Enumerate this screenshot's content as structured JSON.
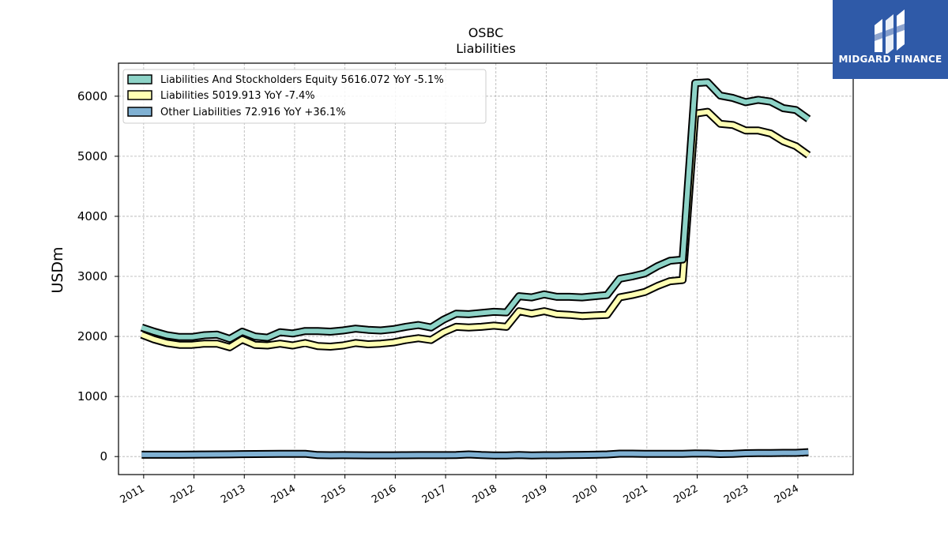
{
  "brand": {
    "name": "MIDGARD FINANCE",
    "color": "#2f5aa8"
  },
  "chart_data": {
    "type": "line",
    "title": "OSBC",
    "subtitle": "Liabilities",
    "xlabel": "",
    "ylabel": "USDm",
    "ylim": [
      -300,
      6550
    ],
    "xlim": [
      2010.5,
      2025.1
    ],
    "yticks": [
      0,
      1000,
      2000,
      3000,
      4000,
      5000,
      6000
    ],
    "xticks": [
      "2011",
      "2012",
      "2013",
      "2014",
      "2015",
      "2016",
      "2017",
      "2018",
      "2019",
      "2020",
      "2021",
      "2022",
      "2023",
      "2024"
    ],
    "grid": true,
    "legend_position": "top-left",
    "x": [
      2010.96,
      2011.21,
      2011.46,
      2011.71,
      2011.96,
      2012.21,
      2012.46,
      2012.71,
      2012.96,
      2013.21,
      2013.46,
      2013.71,
      2013.96,
      2014.21,
      2014.46,
      2014.71,
      2014.96,
      2015.21,
      2015.46,
      2015.71,
      2015.96,
      2016.21,
      2016.46,
      2016.71,
      2016.96,
      2017.21,
      2017.46,
      2017.71,
      2017.96,
      2018.21,
      2018.46,
      2018.71,
      2018.96,
      2019.21,
      2019.46,
      2019.71,
      2019.96,
      2020.21,
      2020.46,
      2020.71,
      2020.96,
      2021.21,
      2021.46,
      2021.71,
      2021.96,
      2022.21,
      2022.46,
      2022.71,
      2022.96,
      2023.21,
      2023.46,
      2023.71,
      2023.96,
      2024.21
    ],
    "series": [
      {
        "name": "Liabilities And Stockholders Equity  5616.072 YoY -5.1%",
        "color": "#8dd3c7",
        "values": [
          2150,
          2080,
          2020,
          1990,
          1990,
          2020,
          2030,
          1960,
          2080,
          2000,
          1980,
          2070,
          2050,
          2090,
          2090,
          2080,
          2100,
          2130,
          2110,
          2100,
          2120,
          2160,
          2190,
          2150,
          2280,
          2380,
          2370,
          2390,
          2410,
          2400,
          2670,
          2650,
          2700,
          2660,
          2660,
          2650,
          2670,
          2690,
          2960,
          3000,
          3050,
          3170,
          3260,
          3280,
          6220,
          6230,
          6010,
          5970,
          5900,
          5940,
          5910,
          5800,
          5770,
          5620
        ]
      },
      {
        "name": "Liabilities  5019.913 YoY -7.4%",
        "color": "#ffffb3",
        "values": [
          2030,
          1950,
          1890,
          1860,
          1860,
          1880,
          1880,
          1820,
          1950,
          1860,
          1850,
          1880,
          1850,
          1890,
          1840,
          1830,
          1850,
          1890,
          1870,
          1880,
          1900,
          1940,
          1970,
          1940,
          2070,
          2160,
          2150,
          2160,
          2180,
          2160,
          2420,
          2380,
          2420,
          2370,
          2360,
          2340,
          2350,
          2360,
          2650,
          2690,
          2740,
          2840,
          2920,
          2940,
          5710,
          5740,
          5540,
          5520,
          5430,
          5430,
          5380,
          5250,
          5170,
          5020
        ]
      },
      {
        "name": "Other Liabilities  72.916 YoY +36.1%",
        "color": "#80b1d3",
        "values": [
          30,
          30,
          30,
          30,
          32,
          34,
          35,
          37,
          40,
          42,
          43,
          44,
          45,
          46,
          25,
          22,
          23,
          22,
          21,
          21,
          21,
          22,
          23,
          24,
          24,
          25,
          35,
          25,
          20,
          20,
          25,
          20,
          22,
          22,
          25,
          27,
          30,
          35,
          48,
          48,
          46,
          44,
          45,
          46,
          52,
          50,
          42,
          45,
          55,
          58,
          58,
          62,
          62,
          73
        ]
      }
    ]
  }
}
